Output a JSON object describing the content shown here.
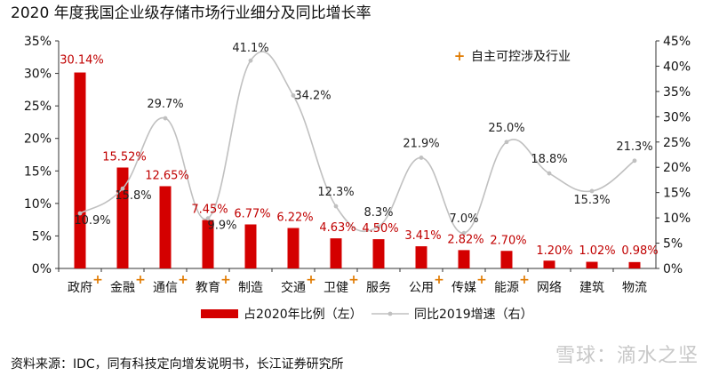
{
  "title": "2020 年度我国企业级存储市场行业细分及同比增长率",
  "source": "资料来源：IDC，同有科技定向增发说明书，长江证券研究所",
  "watermark": "雪球：滴水之坚",
  "colors": {
    "bar": "#d40000",
    "line": "#c0c0c0",
    "bar_label": "#c00000",
    "marker": "#e07a00"
  },
  "chart_data": {
    "type": "bar",
    "categories": [
      "政府",
      "金融",
      "通信",
      "教育",
      "制造",
      "交通",
      "卫健",
      "服务",
      "公用",
      "传媒",
      "能源",
      "网络",
      "建筑",
      "物流"
    ],
    "series": [
      {
        "name": "占2020年比例（左）",
        "type": "bar",
        "axis": "left",
        "values": [
          30.14,
          15.52,
          12.65,
          7.45,
          6.77,
          6.22,
          4.63,
          4.5,
          3.41,
          2.82,
          2.7,
          1.2,
          1.02,
          0.98
        ],
        "labels": [
          "30.14%",
          "15.52%",
          "12.65%",
          "7.45%",
          "6.77%",
          "6.22%",
          "4.63%",
          "4.50%",
          "3.41%",
          "2.82%",
          "2.70%",
          "1.20%",
          "1.02%",
          "0.98%"
        ]
      },
      {
        "name": "同比2019增速（右）",
        "type": "line",
        "axis": "right",
        "values": [
          10.9,
          15.8,
          29.7,
          9.9,
          41.1,
          34.2,
          12.3,
          8.3,
          21.9,
          7.0,
          25.0,
          18.8,
          15.3,
          21.3
        ],
        "labels": [
          "10.9%",
          "15.8%",
          "29.7%",
          "9.9%",
          "41.1%",
          "34.2%",
          "12.3%",
          "8.3%",
          "21.9%",
          "7.0%",
          "25.0%",
          "18.8%",
          "15.3%",
          "21.3%"
        ]
      }
    ],
    "autonomous_marker": [
      true,
      true,
      true,
      true,
      false,
      true,
      true,
      false,
      true,
      true,
      true,
      false,
      false,
      false
    ],
    "autonomous_legend": "自主可控涉及行业",
    "ylim_left": [
      0,
      35
    ],
    "yticks_left": [
      "0%",
      "5%",
      "10%",
      "15%",
      "20%",
      "25%",
      "30%",
      "35%"
    ],
    "ylim_right": [
      0,
      45
    ],
    "yticks_right": [
      "0%",
      "5%",
      "10%",
      "15%",
      "20%",
      "25%",
      "30%",
      "35%",
      "40%",
      "45%"
    ],
    "legend_position": "bottom",
    "grid": false
  }
}
